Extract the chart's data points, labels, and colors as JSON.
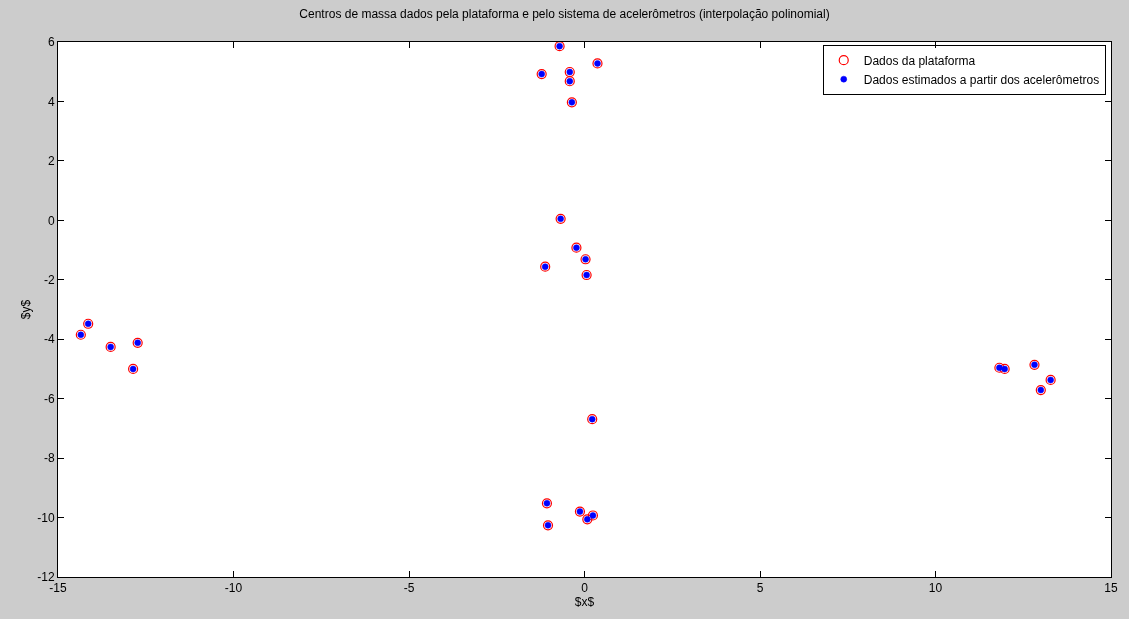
{
  "chart_data": {
    "type": "scatter",
    "title": "Centros de massa dados pela plataforma e pelo sistema de acelerômetros (interpolação polinomial)",
    "xlabel": "$x$",
    "ylabel": "$y$",
    "xlim": [
      -15,
      15
    ],
    "xticks": [
      -15,
      -10,
      -5,
      0,
      5,
      10,
      15
    ],
    "ylim": [
      -12,
      6
    ],
    "yticks": [
      -12,
      -10,
      -8,
      -6,
      -4,
      -2,
      0,
      2,
      4,
      6
    ],
    "legend": "top right",
    "marker": "circle",
    "x": [
      -14.35,
      -14.14,
      -13.5,
      -12.73,
      -12.86,
      -0.71,
      0.37,
      -1.22,
      -0.42,
      -0.42,
      -0.36,
      -0.68,
      -0.23,
      0.03,
      -1.12,
      0.06,
      0.22,
      -1.07,
      -1.04,
      -0.13,
      0.08,
      0.24,
      11.82,
      11.97,
      12.82,
      13.28,
      13.0
    ],
    "series": [
      {
        "name": "Dados da plataforma",
        "color": "#ff0000",
        "values": [
          -3.85,
          -3.48,
          -4.26,
          -4.12,
          -5.0,
          5.86,
          5.28,
          4.92,
          4.99,
          4.68,
          3.97,
          0.05,
          -0.92,
          -1.31,
          -1.56,
          -1.84,
          -6.69,
          -9.52,
          -10.26,
          -9.8,
          -10.06,
          -9.93,
          -4.96,
          -5.0,
          -4.86,
          -5.37,
          -5.71
        ]
      },
      {
        "name": "Dados estimados a partir dos acelerômetros",
        "color": "#0000ff",
        "values": [
          -3.85,
          -3.48,
          -4.26,
          -4.12,
          -5.0,
          5.86,
          5.28,
          4.92,
          4.99,
          4.68,
          3.97,
          0.05,
          -0.92,
          -1.31,
          -1.56,
          -1.84,
          -6.69,
          -9.52,
          -10.26,
          -9.8,
          -10.06,
          -9.93,
          -4.96,
          -5.0,
          -4.86,
          -5.37,
          -5.71
        ]
      }
    ]
  }
}
